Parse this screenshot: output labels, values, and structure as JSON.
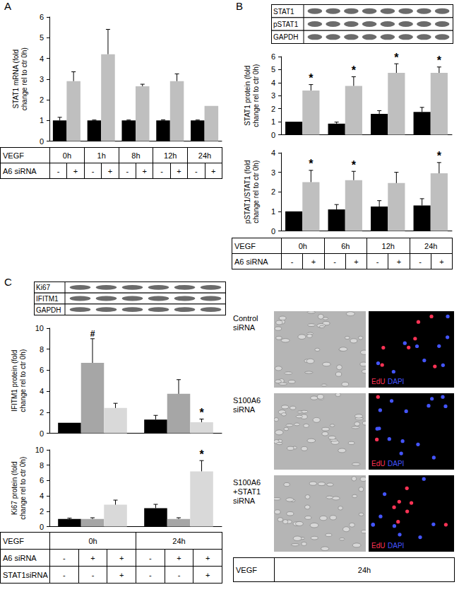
{
  "chart_data": [
    {
      "panel": "A",
      "type": "bar",
      "y_label": "STAT1 mRNA (fold change rel to ctr 0h)",
      "categories": [
        "0h",
        "1h",
        "8h",
        "12h",
        "24h"
      ],
      "series": [
        {
          "color": "#000000",
          "values": [
            1.0,
            1.0,
            1.0,
            1.0,
            1.0
          ],
          "errors": [
            0.15,
            0.02,
            0.02,
            0.03,
            0.02
          ]
        },
        {
          "color": "#bfbfbf",
          "values": [
            2.9,
            4.2,
            2.65,
            2.9,
            1.7
          ],
          "errors": [
            0.45,
            1.2,
            0.1,
            0.35,
            0
          ]
        }
      ],
      "ylim": [
        0,
        6
      ],
      "yticks": [
        0,
        1,
        2,
        3,
        4,
        5,
        6
      ],
      "grid": false,
      "tick_labels": "y",
      "table": {
        "category_label": "VEGF",
        "rows": [
          {
            "label": "A6 siRNA",
            "cells": [
              "-",
              "+",
              "-",
              "+",
              "-",
              "+",
              "-",
              "+",
              "-",
              "+"
            ]
          }
        ]
      }
    },
    {
      "panel": "B",
      "type": "bar",
      "y_label": "STAT1 protein (fold change rel to ctr 0h)",
      "categories": [
        "0h",
        "6h",
        "12h",
        "24h"
      ],
      "series": [
        {
          "color": "#000000",
          "values": [
            1.0,
            0.85,
            1.6,
            1.75
          ],
          "errors": [
            0,
            0.12,
            0.25,
            0.35
          ]
        },
        {
          "color": "#bfbfbf",
          "values": [
            3.4,
            3.75,
            4.75,
            4.75
          ],
          "errors": [
            0.45,
            0.7,
            0.7,
            0.45
          ],
          "marks": [
            "*",
            "*",
            "*",
            "*"
          ]
        }
      ],
      "ylim": [
        0,
        6
      ],
      "yticks": [
        0,
        1,
        2,
        3,
        4,
        5,
        6
      ],
      "grid": false,
      "tick_labels": "y",
      "blot": {
        "rows": [
          "STAT1",
          "pSTAT1",
          "GAPDH"
        ],
        "lanes": 8
      }
    },
    {
      "type": "bar",
      "y_label": "pSTAT1/STAT1 (fold change rel to ctr 0h)",
      "categories": [
        "0h",
        "6h",
        "12h",
        "24h"
      ],
      "series": [
        {
          "color": "#000000",
          "values": [
            1.0,
            1.1,
            1.25,
            1.3
          ],
          "errors": [
            0,
            0.25,
            0.3,
            0.35
          ]
        },
        {
          "color": "#bfbfbf",
          "values": [
            2.5,
            2.6,
            2.45,
            2.95
          ],
          "errors": [
            0.6,
            0.45,
            0.55,
            0.55
          ],
          "marks": [
            "*",
            "*",
            null,
            "*"
          ]
        }
      ],
      "ylim": [
        0,
        4
      ],
      "yticks": [
        0,
        1,
        2,
        3,
        4
      ],
      "grid": false,
      "tick_labels": "y",
      "table": {
        "category_label": "VEGF",
        "rows": [
          {
            "label": "A6 siRNA",
            "cells": [
              "-",
              "+",
              "-",
              "+",
              "-",
              "+",
              "-",
              "+"
            ]
          }
        ]
      }
    },
    {
      "panel": "C",
      "type": "bar",
      "y_label": "IFITM1 protein (fold change rel to ctr 0h)",
      "categories": [
        "0h",
        "24h"
      ],
      "series": [
        {
          "color": "#000000",
          "values": [
            1.0,
            1.3
          ],
          "errors": [
            0,
            0.4
          ]
        },
        {
          "color": "#a6a6a6",
          "values": [
            6.7,
            3.75
          ],
          "errors": [
            2.3,
            1.35
          ],
          "marks": [
            "#",
            null
          ]
        },
        {
          "color": "#d9d9d9",
          "values": [
            2.4,
            1.05
          ],
          "errors": [
            0.45,
            0.3
          ],
          "marks": [
            null,
            "*"
          ]
        }
      ],
      "ylim": [
        0,
        10
      ],
      "yticks": [
        0,
        2,
        4,
        6,
        8,
        10
      ],
      "grid": false,
      "tick_labels": "y",
      "blot": {
        "rows": [
          "Ki67",
          "IFITM1",
          "GAPDH"
        ],
        "lanes": 6
      }
    },
    {
      "type": "bar",
      "y_label": "Ki67 protein (fold change rel to ctr 0h)",
      "categories": [
        "0h",
        "24h"
      ],
      "series": [
        {
          "color": "#000000",
          "values": [
            1.0,
            2.4
          ],
          "errors": [
            0.1,
            0.5
          ]
        },
        {
          "color": "#a6a6a6",
          "values": [
            1.0,
            1.0
          ],
          "errors": [
            0.15,
            0.15
          ]
        },
        {
          "color": "#d9d9d9",
          "values": [
            2.85,
            7.2
          ],
          "errors": [
            0.6,
            1.4
          ],
          "marks": [
            null,
            "*"
          ]
        }
      ],
      "ylim": [
        0,
        10
      ],
      "yticks": [
        0,
        2,
        4,
        6,
        8,
        10
      ],
      "grid": false,
      "tick_labels": "y",
      "table": {
        "category_label": "VEGF",
        "rows": [
          {
            "label": "A6 siRNA",
            "cells": [
              "-",
              "+",
              "+",
              "-",
              "+",
              "+"
            ]
          },
          {
            "label": "STAT1siRNA",
            "cells": [
              "-",
              "-",
              "+",
              "-",
              "-",
              "+"
            ]
          }
        ]
      }
    }
  ],
  "micrographs": {
    "rows": [
      "Control siRNA",
      "S100A6 siRNA",
      "S100A6 +STAT1 siRNA"
    ],
    "stains": [
      {
        "text": "EdU",
        "color": "#ff3355"
      },
      {
        "text": "DAPI",
        "color": "#4455ff"
      }
    ],
    "table": {
      "rows": [
        {
          "label": "VEGF",
          "cells": [
            "24h"
          ]
        }
      ]
    }
  }
}
